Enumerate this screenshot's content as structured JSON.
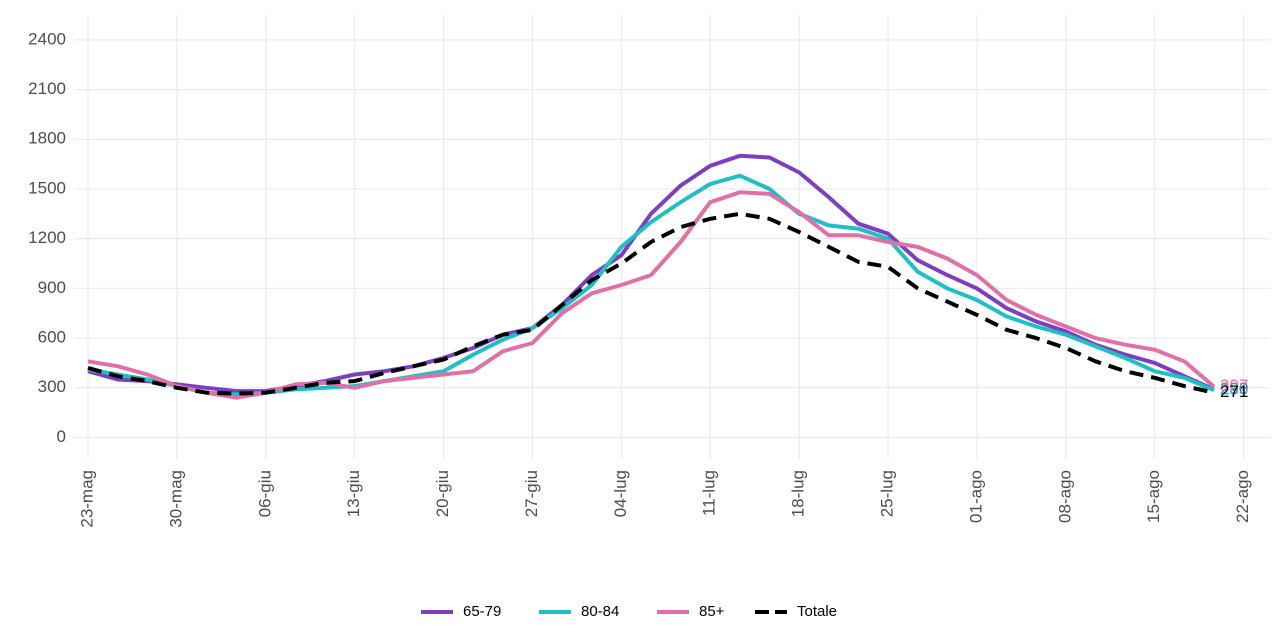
{
  "chart_data": {
    "type": "line",
    "categories": [
      "23-mag",
      null,
      null,
      "30-mag",
      null,
      null,
      "06-giu",
      null,
      null,
      "13-giu",
      null,
      null,
      "20-giu",
      null,
      null,
      "27-giu",
      null,
      null,
      "04-lug",
      null,
      null,
      "11-lug",
      null,
      null,
      "18-lug",
      null,
      null,
      "25-lug",
      null,
      null,
      "01-ago",
      null,
      null,
      "08-ago",
      null,
      null,
      "15-ago",
      null,
      null,
      "22-ago"
    ],
    "series": [
      {
        "name": "65-79",
        "color": "#7b3fbf",
        "values": [
          400,
          350,
          340,
          320,
          300,
          280,
          280,
          310,
          340,
          380,
          400,
          430,
          480,
          540,
          620,
          660,
          800,
          980,
          1100,
          1350,
          1520,
          1640,
          1700,
          1690,
          1600,
          1450,
          1290,
          1230,
          1070,
          980,
          900,
          780,
          700,
          640,
          560,
          500,
          450,
          370,
          290,
          null
        ]
      },
      {
        "name": "80-84",
        "color": "#1fbfc3",
        "values": [
          410,
          380,
          350,
          310,
          270,
          260,
          270,
          290,
          300,
          310,
          340,
          370,
          400,
          500,
          590,
          660,
          780,
          920,
          1150,
          1300,
          1420,
          1530,
          1580,
          1500,
          1350,
          1280,
          1260,
          1200,
          1000,
          900,
          830,
          730,
          670,
          620,
          550,
          480,
          400,
          360,
          285,
          null
        ]
      },
      {
        "name": "85+",
        "color": "#e070a8",
        "values": [
          460,
          430,
          380,
          310,
          270,
          240,
          270,
          320,
          330,
          300,
          340,
          360,
          380,
          400,
          520,
          570,
          750,
          870,
          920,
          980,
          1180,
          1420,
          1480,
          1470,
          1360,
          1220,
          1220,
          1180,
          1150,
          1080,
          980,
          830,
          740,
          670,
          600,
          560,
          530,
          460,
          307,
          null
        ]
      },
      {
        "name": "Totale",
        "color": "#000000",
        "linestyle": "dashed",
        "values": [
          420,
          370,
          340,
          300,
          270,
          265,
          270,
          300,
          330,
          340,
          390,
          430,
          470,
          550,
          620,
          650,
          800,
          950,
          1050,
          1180,
          1270,
          1320,
          1350,
          1320,
          1240,
          1150,
          1060,
          1030,
          900,
          820,
          740,
          650,
          600,
          540,
          460,
          400,
          360,
          310,
          271,
          null
        ]
      }
    ],
    "ylim": [
      -130,
      2550
    ],
    "yticks": [
      0,
      300,
      600,
      900,
      1200,
      1500,
      1800,
      2100,
      2400
    ],
    "grid": true,
    "legend": "bottom"
  }
}
